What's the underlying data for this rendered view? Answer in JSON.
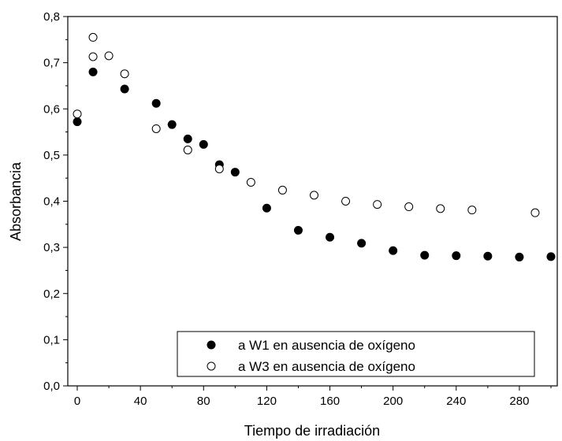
{
  "chart_data": {
    "type": "scatter",
    "title": "",
    "xlabel": "Tiempo de irradiación",
    "ylabel": "Absorbancia",
    "xlim": [
      -6,
      304
    ],
    "ylim": [
      0,
      0.8
    ],
    "xticks": [
      0,
      40,
      80,
      120,
      160,
      200,
      240,
      280
    ],
    "xtick_labels": [
      "0",
      "40",
      "80",
      "120",
      "160",
      "200",
      "240",
      "280"
    ],
    "yticks": [
      0,
      0.1,
      0.2,
      0.3,
      0.4,
      0.5,
      0.6,
      0.7,
      0.8
    ],
    "ytick_labels": [
      "0,0",
      "0,1",
      "0,2",
      "0,3",
      "0,4",
      "0,5",
      "0,6",
      "0,7",
      "0,8"
    ],
    "grid": false,
    "legend_position": "bottom-right",
    "series": [
      {
        "name": "a W1 en ausencia de oxígeno",
        "marker": "filled-circle",
        "color": "#000000",
        "x": [
          0,
          10,
          30,
          50,
          60,
          70,
          80,
          90,
          100,
          120,
          140,
          160,
          180,
          200,
          220,
          240,
          260,
          280,
          300
        ],
        "y": [
          0.572,
          0.68,
          0.643,
          0.612,
          0.566,
          0.535,
          0.523,
          0.479,
          0.463,
          0.385,
          0.337,
          0.322,
          0.309,
          0.293,
          0.283,
          0.282,
          0.281,
          0.279,
          0.28
        ]
      },
      {
        "name": "a W3 en ausencia de oxígeno",
        "marker": "open-circle",
        "color": "#000000",
        "x": [
          0,
          10,
          10,
          20,
          30,
          50,
          70,
          90,
          110,
          130,
          150,
          170,
          190,
          210,
          230,
          250,
          290
        ],
        "y": [
          0.589,
          0.755,
          0.713,
          0.715,
          0.676,
          0.557,
          0.511,
          0.47,
          0.441,
          0.424,
          0.413,
          0.4,
          0.393,
          0.388,
          0.384,
          0.381,
          0.375
        ]
      }
    ]
  }
}
